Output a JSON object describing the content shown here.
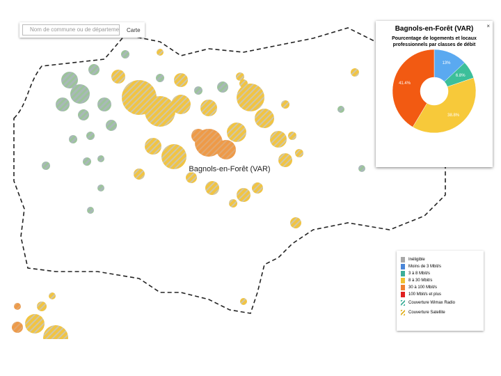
{
  "search": {
    "placeholder": "Nom de commune ou de département",
    "button": "Carte"
  },
  "map_label": "Bagnols-en-Forêt (VAR)",
  "chart_data": {
    "type": "pie",
    "title": "Bagnols-en-Forêt (VAR)",
    "subtitle": "Pourcentage de logements et locaux professionnels par classes de débit",
    "values": [
      13,
      6.8,
      38.8,
      41.4
    ],
    "value_labels": [
      "13%",
      "6.8%",
      "38.8%",
      "41.4%"
    ],
    "colors": [
      "#5aa9f0",
      "#3cbf9a",
      "#f7c93a",
      "#f25a12"
    ]
  },
  "legend": {
    "items": [
      {
        "label": "Inéligible",
        "color": "#a8a8a8"
      },
      {
        "label": "Moins de 3 Mbit/s",
        "color": "#4a86d8"
      },
      {
        "label": "3 à 8 Mbit/s",
        "color": "#3cae98"
      },
      {
        "label": "8 à 30 Mbit/s",
        "color": "#f0c030"
      },
      {
        "label": "30 à 100 Mbit/s",
        "color": "#f08030"
      },
      {
        "label": "100 Mbit/s et plus",
        "color": "#e02020"
      }
    ],
    "hatches": [
      {
        "label": "Couverture Wimax Radio",
        "color": "#3cae98"
      },
      {
        "label": "Couverture Satellite",
        "color": "#e0b020"
      }
    ]
  }
}
